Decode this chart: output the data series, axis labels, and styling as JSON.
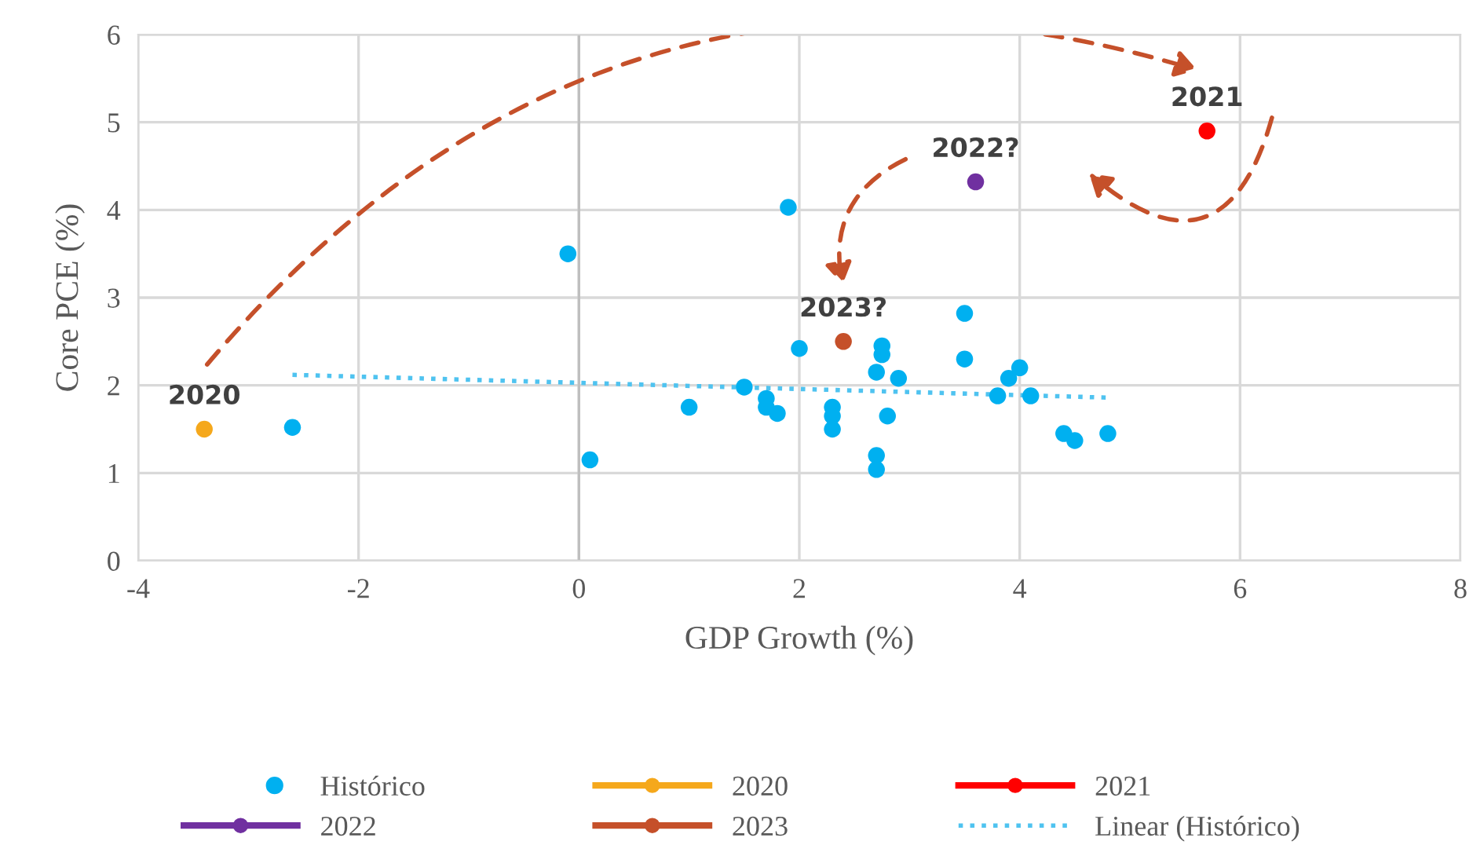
{
  "chart_data": {
    "type": "scatter",
    "xlabel": "GDP Growth (%)",
    "ylabel": "Core PCE (%)",
    "xlim": [
      -4,
      8
    ],
    "xticks": [
      -4,
      -2,
      0,
      2,
      4,
      6,
      8
    ],
    "ylim": [
      0,
      6
    ],
    "yticks": [
      0,
      1,
      2,
      3,
      4,
      5,
      6
    ],
    "grid": true,
    "legend": "bottom",
    "marker": "circle",
    "series": [
      {
        "name": "Histórico",
        "color": "#00b0f0",
        "x": [
          -2.6,
          -0.1,
          0.1,
          1.0,
          1.5,
          1.7,
          1.7,
          1.8,
          1.9,
          2.0,
          2.3,
          2.3,
          2.3,
          2.7,
          2.75,
          2.75,
          2.7,
          2.7,
          2.8,
          2.9,
          3.5,
          3.5,
          3.8,
          3.9,
          4.0,
          4.1,
          4.4,
          4.5,
          4.8
        ],
        "values": [
          1.52,
          3.5,
          1.15,
          1.75,
          1.98,
          1.85,
          1.75,
          1.68,
          4.03,
          2.42,
          1.75,
          1.65,
          1.5,
          2.15,
          2.35,
          2.45,
          1.2,
          1.04,
          1.65,
          2.08,
          2.82,
          2.3,
          1.88,
          2.08,
          2.2,
          1.88,
          1.45,
          1.37,
          1.45
        ]
      },
      {
        "name": "2020",
        "color": "#f5a81c",
        "x": [
          -3.4
        ],
        "values": [
          1.5
        ]
      },
      {
        "name": "2021",
        "color": "#ff0000",
        "x": [
          5.7
        ],
        "values": [
          4.9
        ]
      },
      {
        "name": "2022",
        "color": "#7030a0",
        "x": [
          3.6
        ],
        "values": [
          4.32
        ]
      },
      {
        "name": "2023",
        "color": "#c5502a",
        "x": [
          2.4
        ],
        "values": [
          2.5
        ]
      },
      {
        "name": "Linear (Histórico)",
        "type": "line",
        "line_style": "dotted",
        "marker": "none",
        "color": "#4fc3f0",
        "x": [
          -2.6,
          4.8
        ],
        "values": [
          2.12,
          1.86
        ]
      }
    ],
    "annotations": [
      {
        "text": "2020",
        "x": -3.4,
        "y": 1.5
      },
      {
        "text": "2021",
        "x": 5.7,
        "y": 4.9
      },
      {
        "text": "2022?",
        "x": 3.6,
        "y": 4.32
      },
      {
        "text": "2023?",
        "x": 2.4,
        "y": 2.5
      }
    ]
  }
}
